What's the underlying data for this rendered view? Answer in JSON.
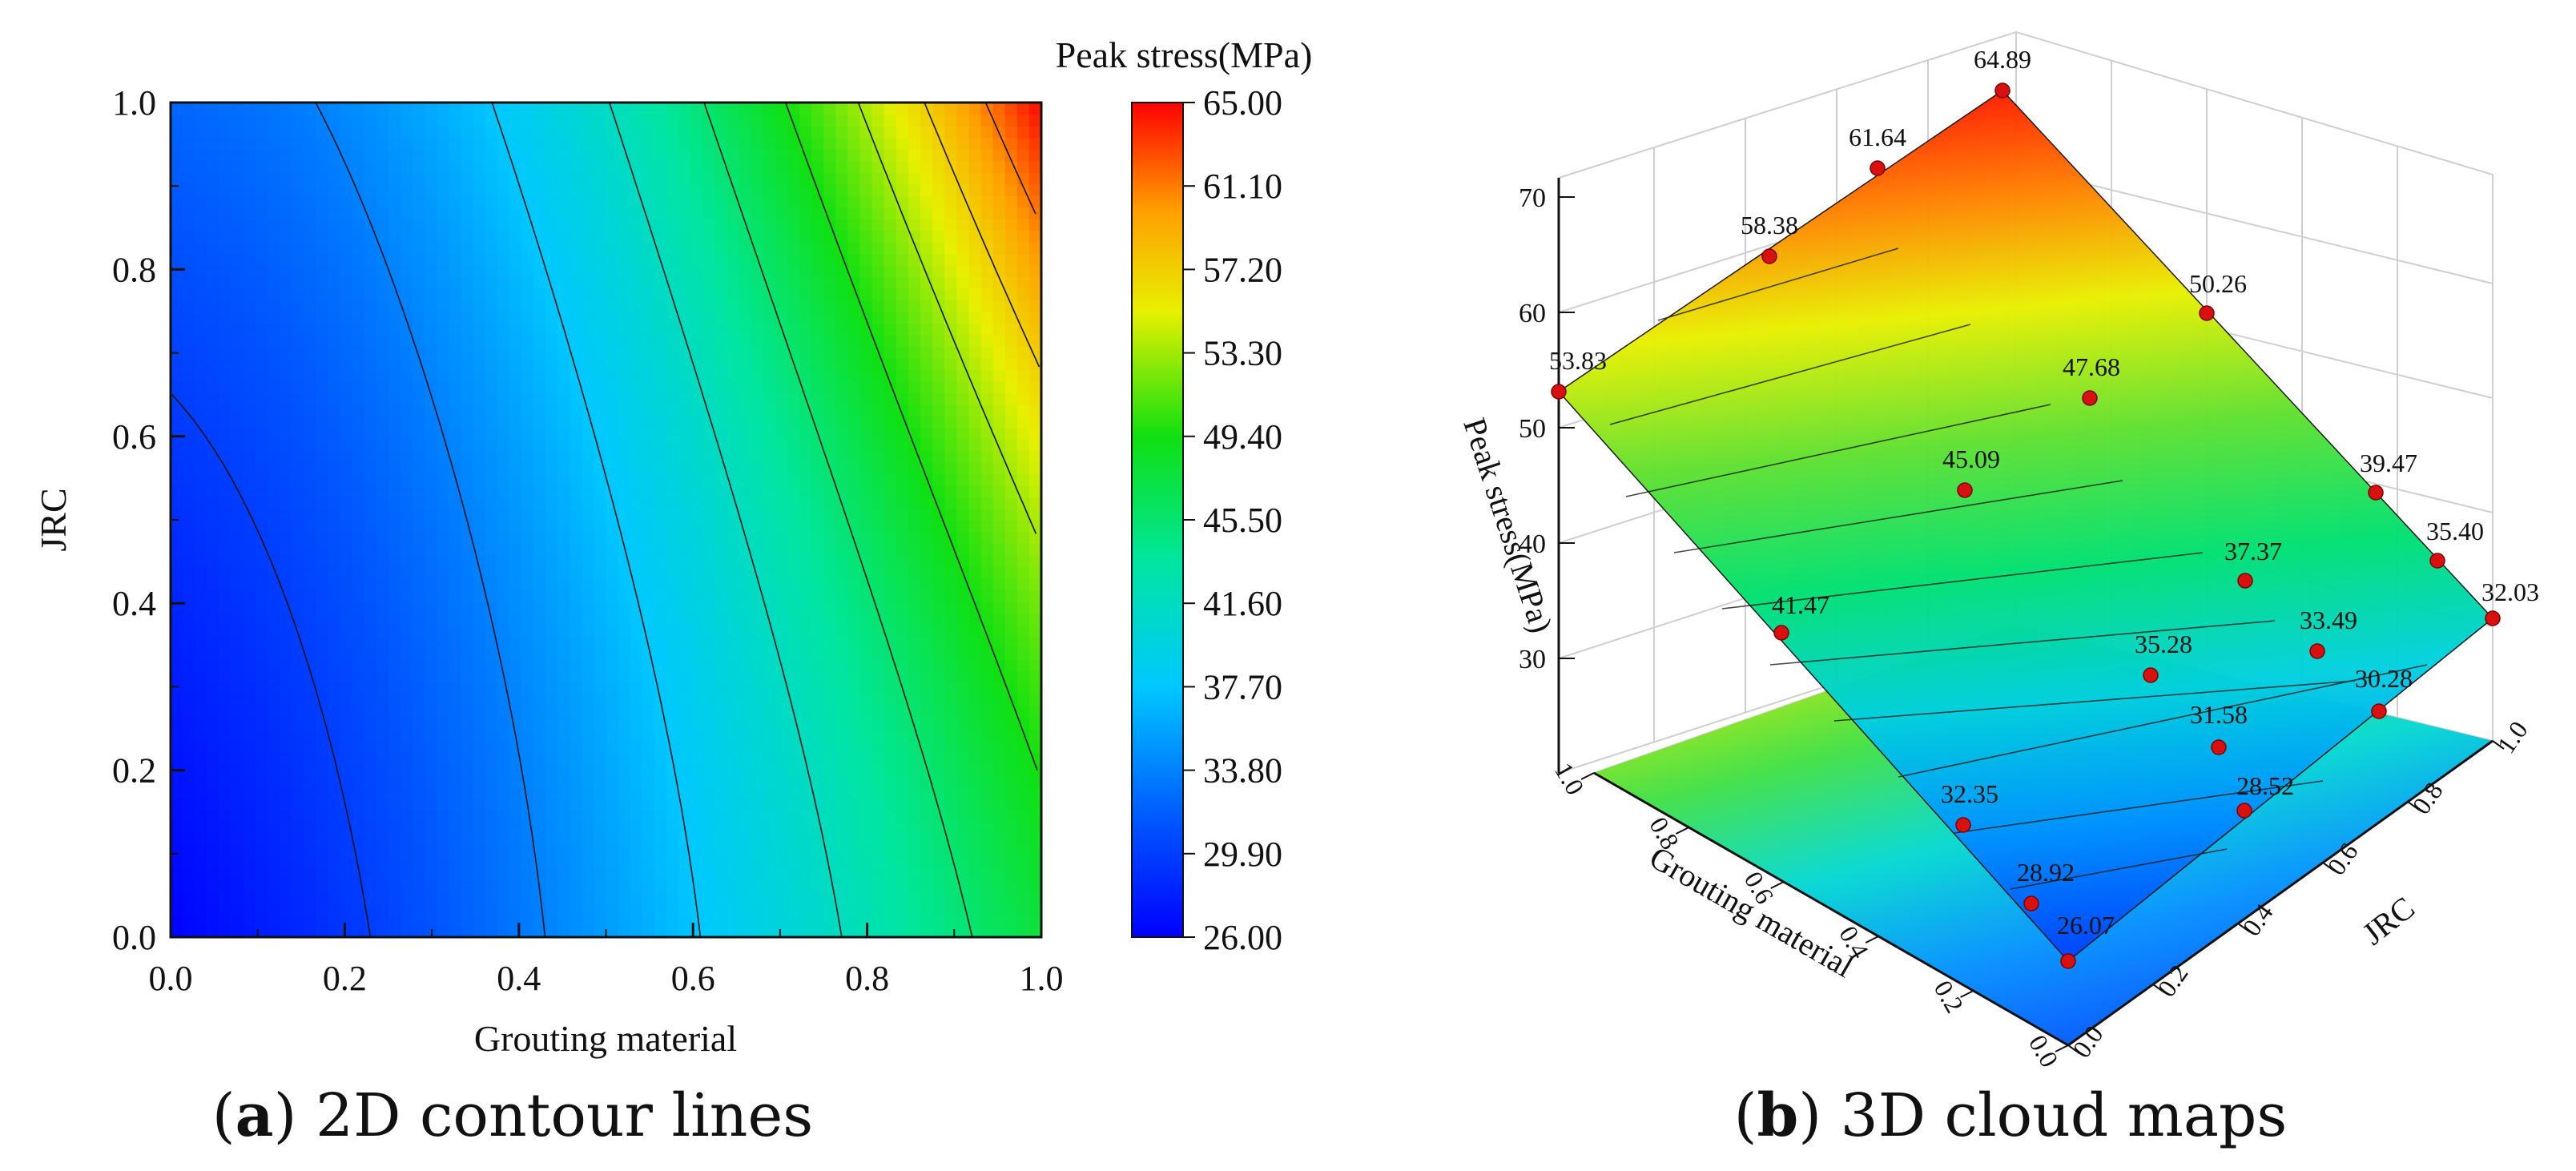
{
  "chart_data": [
    {
      "type": "contour",
      "caption_letter": "a",
      "caption_text": "2D contour lines",
      "xlabel": "Grouting material",
      "ylabel": "JRC",
      "xlim": [
        0.0,
        1.0
      ],
      "ylim": [
        0.0,
        1.0
      ],
      "xticks": [
        "0.0",
        "0.2",
        "0.4",
        "0.6",
        "0.8",
        "1.0"
      ],
      "yticks": [
        "0.0",
        "0.2",
        "0.4",
        "0.6",
        "0.8",
        "1.0"
      ],
      "colorbar": {
        "title": "Peak stress(MPa)",
        "min": 26.0,
        "max": 65.0,
        "ticks": [
          "26.00",
          "29.90",
          "33.80",
          "37.70",
          "41.60",
          "45.50",
          "49.40",
          "53.30",
          "57.20",
          "61.10",
          "65.00"
        ]
      },
      "grid_values": {
        "x": [
          0.0,
          0.5,
          1.0
        ],
        "y": [
          0.0,
          0.5,
          1.0
        ],
        "z": [
          [
            26.07,
            28.92,
            32.35
          ],
          [
            35.28,
            37.37,
            41.47
          ],
          [
            47.68,
            53.83,
            64.89
          ]
        ]
      }
    },
    {
      "type": "surface3d",
      "caption_letter": "b",
      "caption_text": "3D cloud maps",
      "xlabel": "Grouting material",
      "ylabel": "JRC",
      "zlabel": "Peak stress(MPa)",
      "zticks": [
        "30",
        "40",
        "50",
        "60",
        "70"
      ],
      "xticks": [
        "0.0",
        "0.2",
        "0.4",
        "0.6",
        "0.8",
        "1.0"
      ],
      "yticks": [
        "0.0",
        "0.2",
        "0.4",
        "0.6",
        "0.8",
        "1.0"
      ],
      "points": [
        {
          "label": "64.89",
          "value": 64.89
        },
        {
          "label": "61.64",
          "value": 61.64
        },
        {
          "label": "58.38",
          "value": 58.38
        },
        {
          "label": "53.83",
          "value": 53.83
        },
        {
          "label": "50.26",
          "value": 50.26
        },
        {
          "label": "47.68",
          "value": 47.68
        },
        {
          "label": "45.09",
          "value": 45.09
        },
        {
          "label": "41.47",
          "value": 41.47
        },
        {
          "label": "39.47",
          "value": 39.47
        },
        {
          "label": "37.37",
          "value": 37.37
        },
        {
          "label": "35.40",
          "value": 35.4
        },
        {
          "label": "35.28",
          "value": 35.28
        },
        {
          "label": "33.49",
          "value": 33.49
        },
        {
          "label": "32.35",
          "value": 32.35
        },
        {
          "label": "32.03",
          "value": 32.03
        },
        {
          "label": "31.58",
          "value": 31.58
        },
        {
          "label": "30.28",
          "value": 30.28
        },
        {
          "label": "28.92",
          "value": 28.92
        },
        {
          "label": "28.52",
          "value": 28.52
        },
        {
          "label": "26.07",
          "value": 26.07
        }
      ]
    }
  ]
}
